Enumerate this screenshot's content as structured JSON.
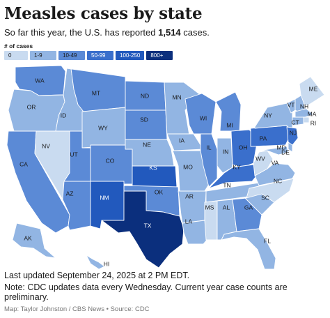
{
  "header": {
    "title": "Measles cases by state",
    "subtitle_prefix": "So far this year, the U.S. has reported ",
    "subtitle_count": "1,514",
    "subtitle_suffix": " cases."
  },
  "legend": {
    "title": "# of cases",
    "bins": [
      {
        "label": "0",
        "color": "#c9dbf0"
      },
      {
        "label": "1-9",
        "color": "#92b5e3"
      },
      {
        "label": "10-49",
        "color": "#5b8ad6"
      },
      {
        "label": "50-99",
        "color": "#3a6fcc"
      },
      {
        "label": "100-250",
        "color": "#2259bd"
      },
      {
        "label": "800+",
        "color": "#0b2f7d"
      }
    ]
  },
  "states": [
    {
      "abbr": "WA",
      "bin": 2
    },
    {
      "abbr": "OR",
      "bin": 1
    },
    {
      "abbr": "CA",
      "bin": 2
    },
    {
      "abbr": "NV",
      "bin": 0
    },
    {
      "abbr": "ID",
      "bin": 1
    },
    {
      "abbr": "MT",
      "bin": 2
    },
    {
      "abbr": "WY",
      "bin": 1
    },
    {
      "abbr": "UT",
      "bin": 2
    },
    {
      "abbr": "AZ",
      "bin": 2
    },
    {
      "abbr": "CO",
      "bin": 2
    },
    {
      "abbr": "NM",
      "bin": 4
    },
    {
      "abbr": "ND",
      "bin": 2
    },
    {
      "abbr": "SD",
      "bin": 2
    },
    {
      "abbr": "NE",
      "bin": 1
    },
    {
      "abbr": "KS",
      "bin": 4
    },
    {
      "abbr": "OK",
      "bin": 2
    },
    {
      "abbr": "TX",
      "bin": 5
    },
    {
      "abbr": "MN",
      "bin": 1
    },
    {
      "abbr": "IA",
      "bin": 1
    },
    {
      "abbr": "MO",
      "bin": 1
    },
    {
      "abbr": "AR",
      "bin": 1
    },
    {
      "abbr": "LA",
      "bin": 1
    },
    {
      "abbr": "WI",
      "bin": 2
    },
    {
      "abbr": "IL",
      "bin": 2
    },
    {
      "abbr": "MI",
      "bin": 2
    },
    {
      "abbr": "IN",
      "bin": 1
    },
    {
      "abbr": "OH",
      "bin": 3
    },
    {
      "abbr": "KY",
      "bin": 3
    },
    {
      "abbr": "TN",
      "bin": 1
    },
    {
      "abbr": "MS",
      "bin": 0
    },
    {
      "abbr": "AL",
      "bin": 1
    },
    {
      "abbr": "GA",
      "bin": 2
    },
    {
      "abbr": "FL",
      "bin": 1
    },
    {
      "abbr": "SC",
      "bin": 1
    },
    {
      "abbr": "NC",
      "bin": 0
    },
    {
      "abbr": "VA",
      "bin": 1
    },
    {
      "abbr": "WV",
      "bin": 0
    },
    {
      "abbr": "PA",
      "bin": 3
    },
    {
      "abbr": "NY",
      "bin": 1
    },
    {
      "abbr": "VT",
      "bin": 1
    },
    {
      "abbr": "NH",
      "bin": 1
    },
    {
      "abbr": "ME",
      "bin": 0
    },
    {
      "abbr": "MA",
      "bin": 1
    },
    {
      "abbr": "RI",
      "bin": 0
    },
    {
      "abbr": "CT",
      "bin": 1
    },
    {
      "abbr": "NJ",
      "bin": 3
    },
    {
      "abbr": "DE",
      "bin": 1
    },
    {
      "abbr": "MD",
      "bin": 1
    },
    {
      "abbr": "AK",
      "bin": 1
    },
    {
      "abbr": "HI",
      "bin": 1
    }
  ],
  "footer": {
    "updated": "Last updated September 24, 2025 at 2 PM EDT.",
    "note": "Note: CDC updates data every Wednesday. Current year case counts are preliminary.",
    "credit": "Map: Taylor Johnston / CBS News • Source: CDC"
  }
}
